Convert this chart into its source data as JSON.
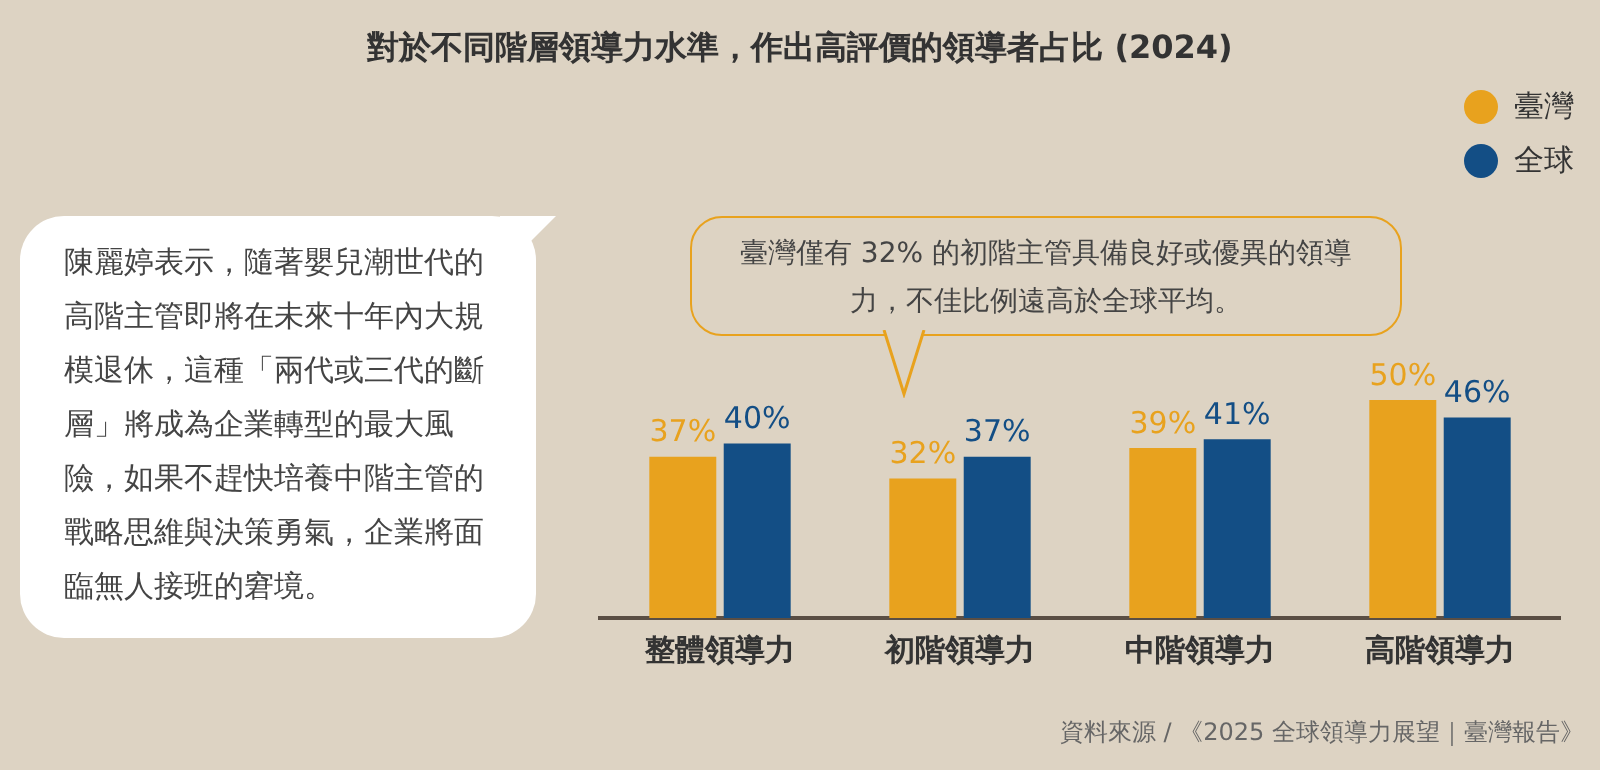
{
  "chart_data": {
    "type": "bar",
    "title": "對於不同階層領導力水準，作出高評價的領導者占比 (2024)",
    "categories": [
      "整體領導力",
      "初階領導力",
      "中階領導力",
      "高階領導力"
    ],
    "series": [
      {
        "name": "臺灣",
        "color": "#e8a21e",
        "values": [
          37,
          32,
          39,
          50
        ],
        "value_labels": [
          "37%",
          "32%",
          "39%",
          "50%"
        ]
      },
      {
        "name": "全球",
        "color": "#134e85",
        "values": [
          40,
          37,
          41,
          46
        ],
        "value_labels": [
          "40%",
          "37%",
          "41%",
          "46%"
        ]
      }
    ],
    "tick_labels": "x",
    "grid": false,
    "legend": "top right",
    "annotations": [
      "陳麗婷表示，隨著嬰兒潮世代的高階主管即將在未來十年內大規模退休，這種「兩代或三代的斷層」將成為企業轉型的最大風險，如果不趕快培養中階主管的戰略思維與決策勇氣，企業將面臨無人接班的窘境。",
      "臺灣僅有 32% 的初階主管具備良好或優異的領導力，不佳比例遠高於全球平均。",
      "資料來源 / 《2025 全球領導力展望｜臺灣報告》"
    ]
  }
}
